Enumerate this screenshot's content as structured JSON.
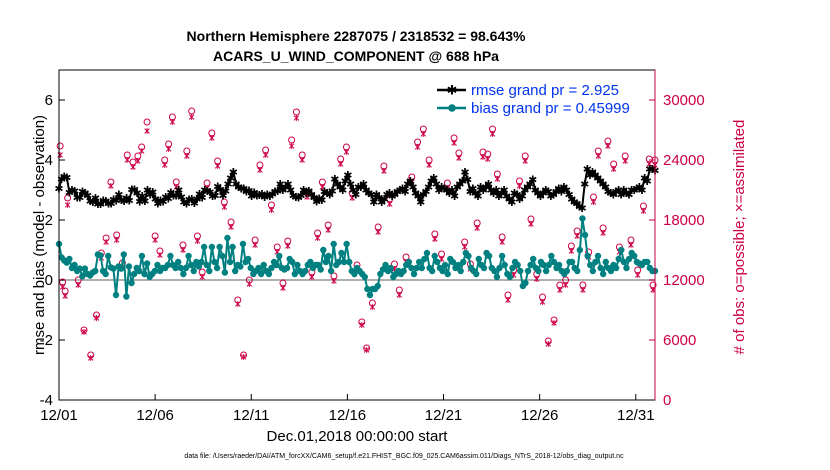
{
  "chart_data": {
    "type": "line",
    "title_line1": "Northern Hemisphere 2287075 / 2318532 = 98.643%",
    "title_line2": "ACARS_U_WIND_COMPONENT @ 688 hPa",
    "ylabel_left": "rmse and bias (model - observation)",
    "ylabel_right": "# of obs: o=possible; ×=assimilated",
    "xlabel": "Dec.01,2018 00:00:00 start",
    "footnote": "data file: /Users/raeder/DAI/ATM_forcXX/CAM6_setup/f.e21.FHIST_BGC.f09_025.CAM6assim.011/Diags_NTrS_2018-12/obs_diag_output.nc",
    "ylim_left": [
      -4,
      7
    ],
    "ylim_right": [
      0,
      33000
    ],
    "xlim_days": [
      0,
      31
    ],
    "yticks_left": [
      "-4",
      "-2",
      "0",
      "2",
      "4",
      "6"
    ],
    "yticks_right": [
      "0",
      "6000",
      "12000",
      "18000",
      "24000",
      "30000"
    ],
    "xticks": [
      "12/01",
      "12/06",
      "12/11",
      "12/16",
      "12/21",
      "12/26",
      "12/31"
    ],
    "colors": {
      "rmse": "#000000",
      "bias": "#008080",
      "obs": "#cc0044",
      "zero": "#b0b0b0",
      "legend_text": "#0033ee"
    },
    "series": [
      {
        "name": "rmse",
        "legend": "rmse grand pr = 2.925",
        "values": [
          3.05,
          3.38,
          3.45,
          3.42,
          2.92,
          3.0,
          2.98,
          2.76,
          2.76,
          2.95,
          2.9,
          2.82,
          2.64,
          2.6,
          2.74,
          2.54,
          2.54,
          2.66,
          2.64,
          2.55,
          2.56,
          2.69,
          2.66,
          2.86,
          2.67,
          2.64,
          2.74,
          2.65,
          3.03,
          3.03,
          2.91,
          2.62,
          2.8,
          2.64,
          3.0,
          2.86,
          2.94,
          2.7,
          2.55,
          2.65,
          2.63,
          2.78,
          2.73,
          2.93,
          2.82,
          2.83,
          3.0,
          2.78,
          2.61,
          2.55,
          2.69,
          2.7,
          2.57,
          2.71,
          2.87,
          2.76,
          3.0,
          2.97,
          2.94,
          2.8,
          2.83,
          3.12,
          3.02,
          2.82,
          2.98,
          3.2,
          3.4,
          3.6,
          3.2,
          3.1,
          3.05,
          3.06,
          2.95,
          2.99,
          2.81,
          2.92,
          2.82,
          2.84,
          2.88,
          2.78,
          2.86,
          2.8,
          2.87,
          2.95,
          2.98,
          3.2,
          3.0,
          3.1,
          3.2,
          3.0,
          2.82,
          2.78,
          2.76,
          2.83,
          3.0,
          2.9,
          2.98,
          2.86,
          2.76,
          2.62,
          2.72,
          2.68,
          2.95,
          2.9,
          2.86,
          2.98,
          3.38,
          3.2,
          3.1,
          3.0,
          3.3,
          3.5,
          3.2,
          3.0,
          2.85,
          3.1,
          3.1,
          3.2,
          3.0,
          2.9,
          2.85,
          2.6,
          2.85,
          2.75,
          2.6,
          2.7,
          2.85,
          2.9,
          2.8,
          2.85,
          2.95,
          3.0,
          3.05,
          2.95,
          3.2,
          3.3,
          3.1,
          2.9,
          2.8,
          2.6,
          2.85,
          2.95,
          3.1,
          3.3,
          3.4,
          3.2,
          3.0,
          3.1,
          3.05,
          3.0,
          2.9,
          3.0,
          2.8,
          3.1,
          3.2,
          3.3,
          3.6,
          3.35,
          2.95,
          3.05,
          2.9,
          2.8,
          3.1,
          3.0,
          3.1,
          3.2,
          3.0,
          2.9,
          3.0,
          2.8,
          2.9,
          3.0,
          2.8,
          2.7,
          2.6,
          2.9,
          2.85,
          2.7,
          2.8,
          3.0,
          3.1,
          3.2,
          3.35,
          3.0,
          2.9,
          2.8,
          2.9,
          3.0,
          2.95,
          2.8,
          2.85,
          2.95,
          3.05,
          2.95,
          3.1,
          3.0,
          2.85,
          2.7,
          2.6,
          2.55,
          2.45,
          2.4,
          3.2,
          3.7,
          3.5,
          3.6,
          3.5,
          3.4,
          3.3,
          3.2,
          3.1,
          2.95,
          2.9,
          2.85,
          2.95,
          3.0,
          2.85,
          3.0,
          2.9,
          2.85,
          3.0,
          3.0,
          3.05,
          3.1,
          3.0,
          3.4,
          3.3,
          3.7,
          3.7,
          3.65
        ]
      },
      {
        "name": "bias",
        "legend": "bias grand pr = 0.45999",
        "values": [
          1.2,
          0.75,
          0.65,
          0.58,
          0.7,
          0.4,
          0.5,
          0.3,
          0.38,
          0.12,
          0.38,
          0.2,
          0.15,
          0.25,
          0.3,
          0.85,
          0.82,
          0.3,
          0.2,
          0.8,
          0.42,
          0.38,
          -0.5,
          0.45,
          0.38,
          0.85,
          -0.55,
          0.45,
          -0.1,
          0.2,
          0.4,
          0.3,
          0.8,
          0.2,
          0.55,
          0.1,
          0.2,
          0.3,
          0.5,
          0.3,
          0.4,
          0.4,
          0.5,
          0.8,
          0.5,
          0.4,
          0.6,
          0.4,
          0.2,
          0.4,
          0.8,
          0.5,
          0.3,
          0.6,
          0.45,
          0.6,
          1.1,
          0.5,
          0.3,
          1.1,
          0.6,
          0.4,
          1.1,
          0.8,
          0.25,
          1.4,
          0.6,
          1.1,
          0.3,
          0.5,
          0.45,
          1.2,
          0.6,
          0.7,
          0.4,
          0.2,
          0.3,
          0.4,
          0.2,
          0.5,
          0.3,
          0.2,
          0.4,
          0.6,
          0.5,
          0.8,
          0.4,
          0.35,
          0.4,
          0.7,
          0.6,
          0.2,
          0.5,
          0.3,
          0.2,
          0.3,
          0.5,
          0.6,
          0.4,
          0.5,
          0.5,
          0.35,
          1.0,
          0.6,
          0.8,
          0.3,
          1.2,
          0.5,
          0.6,
          0.9,
          0.6,
          1.2,
          0.6,
          0.3,
          0.2,
          0.4,
          0.3,
          0.2,
          0.1,
          -0.3,
          -0.5,
          -0.3,
          -0.3,
          -0.2,
          0.2,
          0.35,
          0.5,
          0.3,
          0.4,
          0.1,
          0.2,
          0.3,
          0.2,
          0.3,
          0.5,
          0.6,
          0.4,
          0.2,
          0.4,
          0.6,
          0.4,
          0.7,
          0.9,
          0.4,
          0.3,
          0.8,
          0.6,
          0.4,
          0.3,
          0.5,
          0.2,
          0.7,
          0.6,
          0.4,
          0.5,
          0.3,
          0.6,
          0.9,
          0.8,
          0.4,
          0.3,
          0.2,
          0.7,
          0.5,
          0.4,
          0.9,
          0.8,
          0.4,
          0.3,
          0.1,
          0.4,
          0.8,
          0.5,
          0.2,
          0.1,
          0.4,
          0.6,
          0.5,
          0.3,
          -0.2,
          -0.1,
          0.3,
          0.5,
          0.7,
          0.4,
          0.3,
          0.6,
          0.5,
          0.3,
          0.5,
          0.8,
          0.6,
          0.4,
          0.5,
          0.3,
          0.2,
          0.3,
          0.6,
          0.6,
          0.4,
          0.3,
          1.0,
          2.05,
          1.5,
          0.8,
          0.5,
          0.3,
          0.6,
          0.8,
          0.4,
          0.2,
          0.6,
          0.4,
          0.3,
          0.5,
          0.4,
          0.7,
          1.0,
          0.6,
          0.4,
          0.7,
          0.9,
          0.8,
          0.6,
          0.55,
          0.5,
          0.6,
          0.6,
          0.4,
          0.3,
          0.3
        ]
      }
    ],
    "obs_possible": [
      [
        0.06,
        25400
      ],
      [
        0.19,
        11800
      ],
      [
        0.32,
        10900
      ],
      [
        0.45,
        20200
      ],
      [
        1.0,
        12000
      ],
      [
        1.3,
        7000
      ],
      [
        1.65,
        4500
      ],
      [
        1.95,
        8500
      ],
      [
        2.2,
        14700
      ],
      [
        2.45,
        16200
      ],
      [
        2.7,
        21800
      ],
      [
        3.0,
        16500
      ],
      [
        3.3,
        13700
      ],
      [
        3.55,
        24500
      ],
      [
        3.85,
        23800
      ],
      [
        4.1,
        24400
      ],
      [
        4.3,
        25300
      ],
      [
        4.58,
        27800
      ],
      [
        5.0,
        16400
      ],
      [
        5.25,
        14900
      ],
      [
        5.5,
        24000
      ],
      [
        5.7,
        25600
      ],
      [
        5.9,
        28300
      ],
      [
        6.1,
        21800
      ],
      [
        6.45,
        15500
      ],
      [
        6.65,
        24900
      ],
      [
        6.9,
        28900
      ],
      [
        7.2,
        16400
      ],
      [
        7.45,
        12800
      ],
      [
        7.7,
        21700
      ],
      [
        7.95,
        26700
      ],
      [
        8.25,
        23900
      ],
      [
        8.6,
        19800
      ],
      [
        8.95,
        17800
      ],
      [
        9.3,
        10000
      ],
      [
        9.6,
        4500
      ],
      [
        9.9,
        12000
      ],
      [
        10.2,
        16000
      ],
      [
        10.45,
        23500
      ],
      [
        10.75,
        25000
      ],
      [
        11.05,
        19500
      ],
      [
        11.35,
        15300
      ],
      [
        11.65,
        11700
      ],
      [
        11.9,
        15900
      ],
      [
        12.1,
        26000
      ],
      [
        12.35,
        28800
      ],
      [
        12.65,
        24500
      ],
      [
        12.9,
        20800
      ],
      [
        13.15,
        12800
      ],
      [
        13.45,
        16700
      ],
      [
        13.7,
        21800
      ],
      [
        14.0,
        17500
      ],
      [
        14.3,
        12400
      ],
      [
        14.65,
        24100
      ],
      [
        14.95,
        25300
      ],
      [
        15.25,
        20700
      ],
      [
        15.5,
        13500
      ],
      [
        15.75,
        7800
      ],
      [
        16.0,
        5200
      ],
      [
        16.3,
        9700
      ],
      [
        16.6,
        17300
      ],
      [
        16.9,
        23400
      ],
      [
        17.2,
        20100
      ],
      [
        17.45,
        13600
      ],
      [
        17.7,
        11000
      ],
      [
        18.05,
        14300
      ],
      [
        18.35,
        22300
      ],
      [
        18.65,
        25800
      ],
      [
        18.95,
        27100
      ],
      [
        19.25,
        24000
      ],
      [
        19.55,
        16600
      ],
      [
        19.9,
        14600
      ],
      [
        20.2,
        21700
      ],
      [
        20.55,
        26200
      ],
      [
        20.8,
        24700
      ],
      [
        21.1,
        15800
      ],
      [
        21.4,
        13600
      ],
      [
        21.75,
        17700
      ],
      [
        22.05,
        24800
      ],
      [
        22.3,
        24600
      ],
      [
        22.55,
        27100
      ],
      [
        22.8,
        22600
      ],
      [
        23.05,
        16300
      ],
      [
        23.35,
        10500
      ],
      [
        23.65,
        13000
      ],
      [
        23.95,
        21900
      ],
      [
        24.25,
        24400
      ],
      [
        24.55,
        18100
      ],
      [
        24.85,
        12600
      ],
      [
        25.15,
        10300
      ],
      [
        25.45,
        5900
      ],
      [
        25.75,
        8000
      ],
      [
        26.05,
        11500
      ],
      [
        26.35,
        12000
      ],
      [
        26.65,
        15400
      ],
      [
        26.95,
        16900
      ],
      [
        27.25,
        11500
      ],
      [
        27.55,
        14800
      ],
      [
        27.8,
        20300
      ],
      [
        28.05,
        24900
      ],
      [
        28.3,
        17200
      ],
      [
        28.55,
        25900
      ],
      [
        28.85,
        23600
      ],
      [
        29.15,
        15300
      ],
      [
        29.45,
        24400
      ],
      [
        29.75,
        16000
      ],
      [
        30.1,
        13000
      ],
      [
        30.4,
        19400
      ],
      [
        30.7,
        24100
      ],
      [
        30.9,
        11500
      ],
      [
        31.0,
        24000
      ]
    ],
    "obs_assimilated": [
      [
        0.06,
        24500
      ],
      [
        0.19,
        11300
      ],
      [
        0.32,
        10400
      ],
      [
        0.45,
        19500
      ],
      [
        1.0,
        11500
      ],
      [
        1.3,
        6800
      ],
      [
        1.65,
        4200
      ],
      [
        1.95,
        8200
      ],
      [
        2.2,
        14200
      ],
      [
        2.45,
        15800
      ],
      [
        2.7,
        21400
      ],
      [
        3.0,
        16000
      ],
      [
        3.3,
        13300
      ],
      [
        3.55,
        24000
      ],
      [
        3.85,
        23300
      ],
      [
        4.1,
        23900
      ],
      [
        4.3,
        24900
      ],
      [
        4.58,
        26900
      ],
      [
        5.0,
        16000
      ],
      [
        5.25,
        14500
      ],
      [
        5.5,
        23500
      ],
      [
        5.7,
        25100
      ],
      [
        5.9,
        27800
      ],
      [
        6.1,
        21300
      ],
      [
        6.45,
        15000
      ],
      [
        6.65,
        24400
      ],
      [
        6.9,
        28300
      ],
      [
        7.2,
        15900
      ],
      [
        7.45,
        12300
      ],
      [
        7.7,
        21200
      ],
      [
        7.95,
        26200
      ],
      [
        8.25,
        23400
      ],
      [
        8.6,
        19300
      ],
      [
        8.95,
        17300
      ],
      [
        9.3,
        9600
      ],
      [
        9.6,
        4300
      ],
      [
        9.9,
        11600
      ],
      [
        10.2,
        15500
      ],
      [
        10.45,
        23000
      ],
      [
        10.75,
        24500
      ],
      [
        11.05,
        19000
      ],
      [
        11.35,
        14800
      ],
      [
        11.65,
        11200
      ],
      [
        11.9,
        15400
      ],
      [
        12.1,
        25400
      ],
      [
        12.35,
        28200
      ],
      [
        12.65,
        24000
      ],
      [
        12.9,
        20300
      ],
      [
        13.15,
        12300
      ],
      [
        13.45,
        16200
      ],
      [
        13.7,
        21300
      ],
      [
        14.0,
        17000
      ],
      [
        14.3,
        11900
      ],
      [
        14.65,
        23600
      ],
      [
        14.95,
        24800
      ],
      [
        15.25,
        20200
      ],
      [
        15.5,
        13000
      ],
      [
        15.75,
        7500
      ],
      [
        16.0,
        5000
      ],
      [
        16.3,
        9300
      ],
      [
        16.6,
        16800
      ],
      [
        16.9,
        22900
      ],
      [
        17.2,
        19600
      ],
      [
        17.45,
        13100
      ],
      [
        17.7,
        10500
      ],
      [
        18.05,
        13800
      ],
      [
        18.35,
        21800
      ],
      [
        18.65,
        25300
      ],
      [
        18.95,
        26600
      ],
      [
        19.25,
        23500
      ],
      [
        19.55,
        16100
      ],
      [
        19.9,
        14100
      ],
      [
        20.2,
        21200
      ],
      [
        20.55,
        25700
      ],
      [
        20.8,
        24200
      ],
      [
        21.1,
        15300
      ],
      [
        21.4,
        13100
      ],
      [
        21.75,
        17200
      ],
      [
        22.05,
        24300
      ],
      [
        22.3,
        24100
      ],
      [
        22.55,
        26600
      ],
      [
        22.8,
        22100
      ],
      [
        23.05,
        15800
      ],
      [
        23.35,
        10000
      ],
      [
        23.65,
        12500
      ],
      [
        23.95,
        21400
      ],
      [
        24.25,
        23900
      ],
      [
        24.55,
        17600
      ],
      [
        24.85,
        12100
      ],
      [
        25.15,
        9800
      ],
      [
        25.45,
        5600
      ],
      [
        25.75,
        7700
      ],
      [
        26.05,
        11000
      ],
      [
        26.35,
        11500
      ],
      [
        26.65,
        14900
      ],
      [
        26.95,
        16400
      ],
      [
        27.25,
        11000
      ],
      [
        27.55,
        14300
      ],
      [
        27.8,
        19800
      ],
      [
        28.05,
        24400
      ],
      [
        28.3,
        16700
      ],
      [
        28.55,
        25400
      ],
      [
        28.85,
        23100
      ],
      [
        29.15,
        14800
      ],
      [
        29.45,
        23900
      ],
      [
        29.75,
        15500
      ],
      [
        30.1,
        12500
      ],
      [
        30.4,
        18900
      ],
      [
        30.7,
        23600
      ],
      [
        30.9,
        11000
      ],
      [
        31.0,
        23500
      ]
    ]
  }
}
